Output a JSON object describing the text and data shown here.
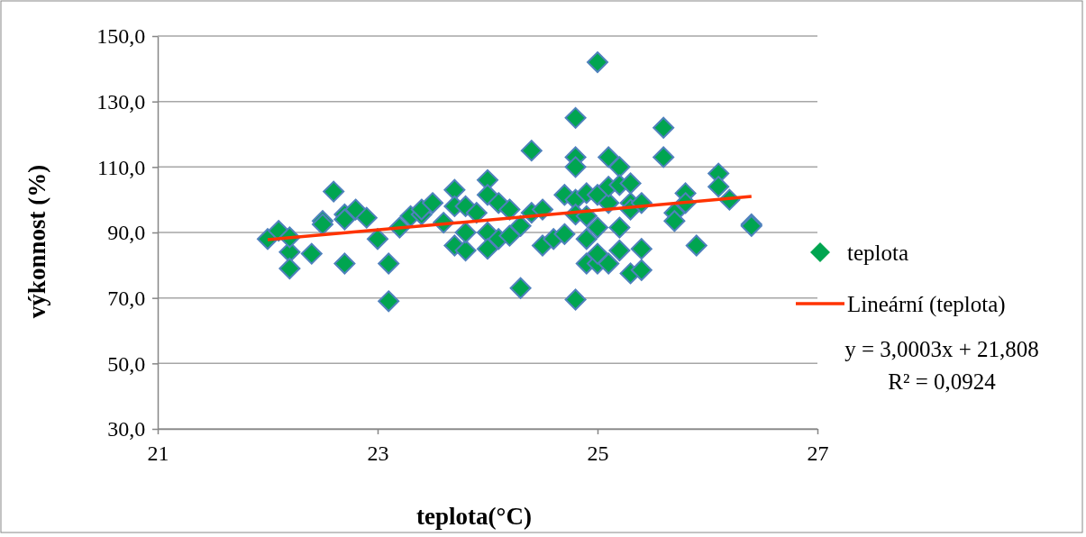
{
  "chart_data": {
    "type": "scatter",
    "xlabel": "teplota(°C)",
    "ylabel": "výkonnost  (%)",
    "xlim": [
      21,
      27
    ],
    "xticks": [
      21,
      23,
      25,
      27
    ],
    "ylim": [
      30,
      150
    ],
    "yticks": [
      {
        "value": 30,
        "label": "30,0"
      },
      {
        "value": 50,
        "label": "50,0"
      },
      {
        "value": 70,
        "label": "70,0"
      },
      {
        "value": 90,
        "label": "90,0"
      },
      {
        "value": 110,
        "label": "110,0"
      },
      {
        "value": 130,
        "label": "130,0"
      },
      {
        "value": 150,
        "label": "150,0"
      }
    ],
    "grid": "y",
    "legend": "right",
    "series": [
      {
        "name": "teplota",
        "marker": "diamond",
        "color": "#00a550",
        "x": [
          22.0,
          22.1,
          22.2,
          22.2,
          22.2,
          22.4,
          22.5,
          22.5,
          22.6,
          22.7,
          22.7,
          22.7,
          22.8,
          22.9,
          23.0,
          23.1,
          23.1,
          23.2,
          23.3,
          23.4,
          23.4,
          23.5,
          23.6,
          23.7,
          23.7,
          23.7,
          23.8,
          23.8,
          23.8,
          23.9,
          24.0,
          24.0,
          24.0,
          24.0,
          24.1,
          24.1,
          24.2,
          24.2,
          24.3,
          24.3,
          24.4,
          24.4,
          24.5,
          24.5,
          24.6,
          24.7,
          24.7,
          24.8,
          24.8,
          24.8,
          24.8,
          24.8,
          24.8,
          24.9,
          24.9,
          24.9,
          24.9,
          25.0,
          25.0,
          25.0,
          25.0,
          25.0,
          25.1,
          25.1,
          25.1,
          25.1,
          25.2,
          25.2,
          25.2,
          25.2,
          25.3,
          25.3,
          25.3,
          25.3,
          25.4,
          25.4,
          25.4,
          25.6,
          25.6,
          25.7,
          25.7,
          25.8,
          25.8,
          25.9,
          26.1,
          26.1,
          26.2,
          26.4,
          26.4
        ],
        "values": [
          88,
          90.5,
          84,
          79,
          88.5,
          83.5,
          93.5,
          92.5,
          102.5,
          95.5,
          80.5,
          94,
          97,
          94.5,
          88,
          80.5,
          69,
          91.5,
          95,
          95.5,
          97,
          99,
          93,
          103,
          98,
          86,
          98,
          84.5,
          90,
          96,
          106,
          101.5,
          90,
          85,
          99,
          88,
          97,
          89,
          73,
          92,
          115,
          96,
          97,
          86,
          88,
          101.5,
          89.5,
          125,
          113,
          110,
          69.5,
          100,
          95.5,
          102,
          95,
          88,
          80.5,
          142,
          101.5,
          91.5,
          80.5,
          83.5,
          113,
          99,
          80.5,
          104,
          110,
          104.5,
          84.5,
          91.5,
          99,
          97,
          77.5,
          105,
          99,
          85,
          78.5,
          122,
          113,
          96,
          93.5,
          102,
          99,
          86,
          108,
          104,
          100,
          92.5,
          92
        ]
      },
      {
        "name": "Lineární (teplota)",
        "type": "line",
        "color": "#ff3300",
        "marker": "none",
        "x": [
          22.0,
          26.4
        ],
        "values": [
          87.8,
          101.0
        ]
      }
    ],
    "annotations": [
      "y = 3,0003x  + 21,808",
      "R² = 0,0924"
    ]
  }
}
